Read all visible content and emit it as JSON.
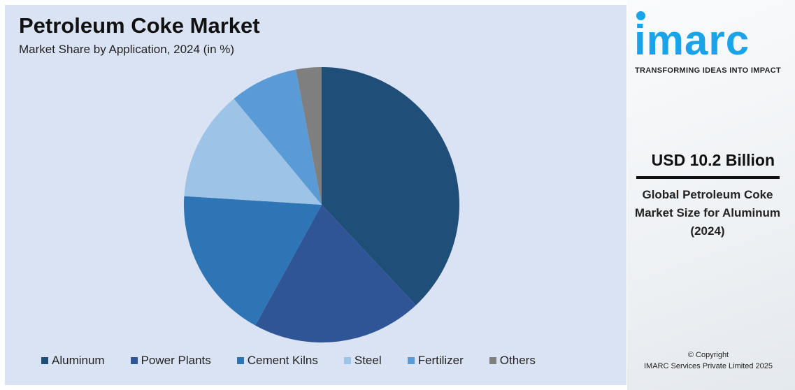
{
  "header": {
    "title": "Petroleum Coke Market",
    "subtitle": "Market Share by Application, 2024 (in %)"
  },
  "chart_data": {
    "type": "pie",
    "title": "Petroleum Coke Market",
    "subtitle": "Market Share by Application, 2024 (in %)",
    "categories": [
      "Aluminum",
      "Power Plants",
      "Cement Kilns",
      "Steel",
      "Fertilizer",
      "Others"
    ],
    "values": [
      38,
      20,
      18,
      13,
      8,
      3
    ],
    "colors": [
      "#1f4e79",
      "#2f5597",
      "#2e75b6",
      "#9dc3e6",
      "#5b9bd5",
      "#7f7f7f"
    ],
    "start_angle": "12 o'clock",
    "direction": "clockwise",
    "legend_position": "bottom"
  },
  "sidebar": {
    "logo": "imarc",
    "tagline": "TRANSFORMING IDEAS INTO IMPACT",
    "value": "USD 10.2 Billion",
    "description": "Global Petroleum Coke Market Size for Aluminum (2024)",
    "copyright_line1": "© Copyright",
    "copyright_line2": "IMARC Services Private Limited 2025"
  }
}
